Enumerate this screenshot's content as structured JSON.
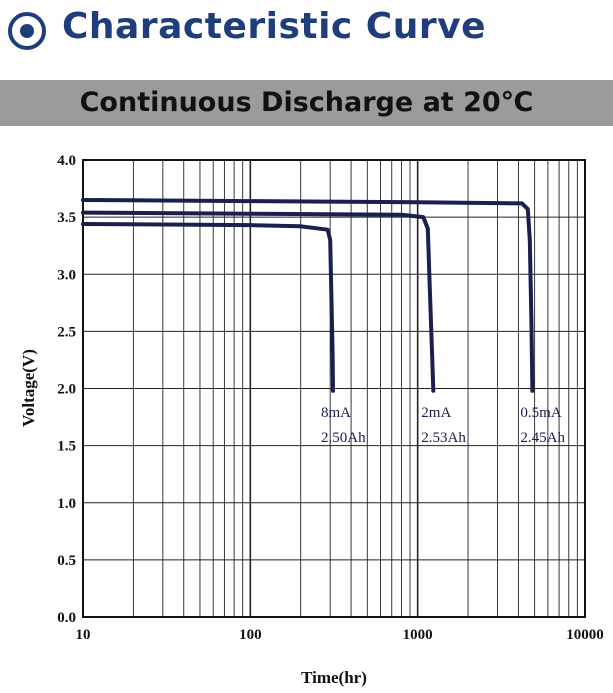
{
  "header": {
    "title": "Characteristic Curve",
    "banner": "Continuous Discharge at 20℃",
    "icon": "radio-dot-icon",
    "accent_color": "#1f3d7a",
    "banner_color": "#9b9b9b"
  },
  "chart_data": {
    "type": "line",
    "xlabel": "Time(hr)",
    "ylabel": "Voltage(V)",
    "x_scale": "log",
    "xlim": [
      10,
      10000
    ],
    "ylim": [
      0.0,
      4.0
    ],
    "x_ticks": [
      "10",
      "100",
      "1000",
      "10000"
    ],
    "y_ticks": [
      "0.0",
      "0.5",
      "1.0",
      "1.5",
      "2.0",
      "2.5",
      "3.0",
      "3.5",
      "4.0"
    ],
    "grid": true,
    "line_color": "#1a1f4e",
    "series": [
      {
        "name": "8mA",
        "capacity": "2.50Ah",
        "points": [
          [
            10,
            3.44
          ],
          [
            100,
            3.43
          ],
          [
            200,
            3.42
          ],
          [
            290,
            3.39
          ],
          [
            300,
            3.3
          ],
          [
            305,
            2.8
          ],
          [
            310,
            2.3
          ],
          [
            312,
            1.98
          ]
        ]
      },
      {
        "name": "2mA",
        "capacity": "2.53Ah",
        "points": [
          [
            10,
            3.54
          ],
          [
            100,
            3.53
          ],
          [
            800,
            3.52
          ],
          [
            1080,
            3.5
          ],
          [
            1150,
            3.4
          ],
          [
            1180,
            2.9
          ],
          [
            1220,
            2.3
          ],
          [
            1240,
            1.98
          ]
        ]
      },
      {
        "name": "0.5mA",
        "capacity": "2.45Ah",
        "points": [
          [
            10,
            3.65
          ],
          [
            100,
            3.64
          ],
          [
            1000,
            3.63
          ],
          [
            4200,
            3.62
          ],
          [
            4550,
            3.57
          ],
          [
            4680,
            3.3
          ],
          [
            4780,
            2.6
          ],
          [
            4850,
            1.98
          ]
        ]
      }
    ]
  }
}
